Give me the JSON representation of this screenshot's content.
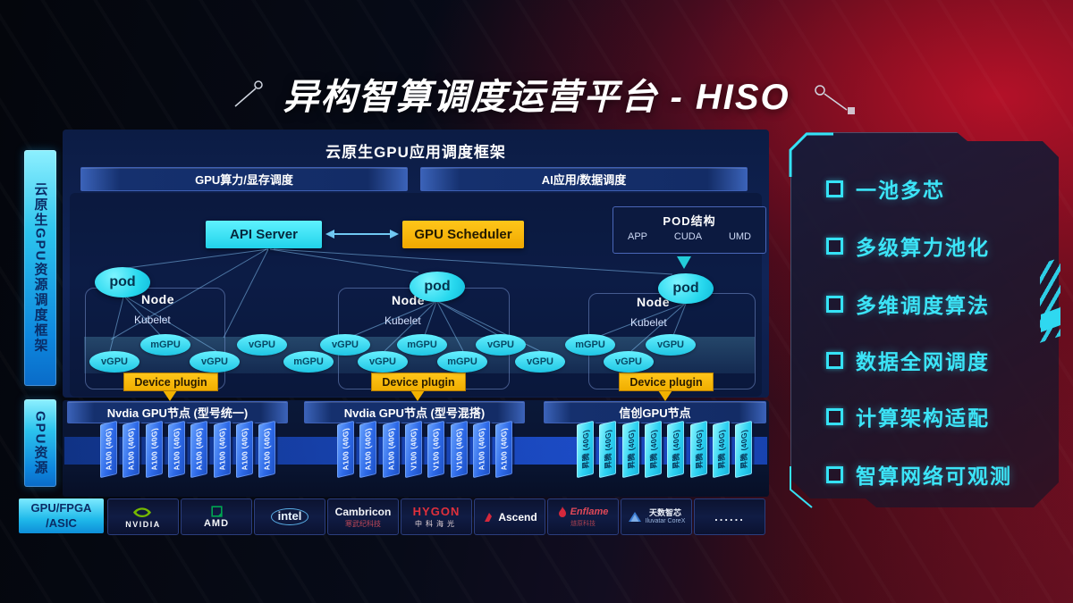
{
  "title": "异构智算调度运营平台 - HISO",
  "sidebar": {
    "framework_bar": "云原生GPU资源调度框架",
    "resource_bar": "GPU资源",
    "hardware_bar_line1": "GPU/FPGA",
    "hardware_bar_line2": "/ASIC"
  },
  "framework": {
    "header": "云原生GPU应用调度框架",
    "left_bar": "GPU算力/显存调度",
    "right_bar": "AI应用/数据调度"
  },
  "scheduler": {
    "api_server": "API Server",
    "gpu_scheduler": "GPU Scheduler",
    "pod_box": {
      "title": "POD结构",
      "items": [
        "APP",
        "CUDA",
        "UMD"
      ]
    },
    "pod_label": "pod",
    "node_label": "Node",
    "kubelet_label": "Kubelet",
    "device_plugin": "Device plugin",
    "gpu_units": [
      "vGPU",
      "mGPU",
      "vGPU",
      "vGPU",
      "mGPU",
      "vGPU",
      "vGPU",
      "mGPU",
      "mGPU",
      "vGPU",
      "vGPU",
      "mGPU",
      "vGPU",
      "vGPU"
    ]
  },
  "gpu_groups": [
    {
      "title": "Nvdia GPU节点 (型号统一)",
      "style": "blue",
      "cards": [
        "A100 (40G)",
        "A100 (40G)",
        "A100 (40G)",
        "A100 (40G)",
        "A100 (40G)",
        "A100 (40G)",
        "A100 (40G)",
        "A100 (40G)"
      ]
    },
    {
      "title": "Nvdia GPU节点 (型号混搭)",
      "style": "blue",
      "cards": [
        "A100 (40G)",
        "A100 (40G)",
        "A100 (40G)",
        "V100 (40G)",
        "V100 (40G)",
        "V100 (40G)",
        "A100 (40G)",
        "A100 (40G)"
      ]
    },
    {
      "title": "信创GPU节点",
      "style": "cyan",
      "cards": [
        "昇腾 (40G)",
        "昇腾 (40G)",
        "昇腾 (40G)",
        "昇腾 (40G)",
        "昇腾 (40G)",
        "昇腾 (40G)",
        "昇腾 (40G)",
        "昇腾 (40G)"
      ]
    }
  ],
  "vendors": [
    {
      "name": "NVIDIA",
      "logo": "nvidia"
    },
    {
      "name": "AMD",
      "logo": "amd"
    },
    {
      "name": "intel",
      "logo": "intel"
    },
    {
      "name": "Cambricon",
      "sub": "寒武纪科技",
      "logo": "cambricon"
    },
    {
      "name": "HYGON",
      "sub": "中科海光",
      "logo": "hygon"
    },
    {
      "name": "Ascend",
      "logo": "ascend"
    },
    {
      "name": "Enflame",
      "sub": "燧原科技",
      "logo": "enflame"
    },
    {
      "name": "天数智芯",
      "sub": "Iluvatar CoreX",
      "logo": "iluvatar"
    },
    {
      "name": "......",
      "logo": "dots"
    }
  ],
  "features": [
    "一池多芯",
    "多级算力池化",
    "多维调度算法",
    "数据全网调度",
    "计算架构适配",
    "智算网络可观测"
  ],
  "colors": {
    "accent_cyan": "#35e2f5",
    "accent_yellow": "#f6b800",
    "card_blue": "#2e6ae8",
    "card_cyan": "#2ed2f2",
    "panel_navy": "#102457",
    "bg_red": "#8e1322",
    "nvidia_green": "#76b900"
  }
}
